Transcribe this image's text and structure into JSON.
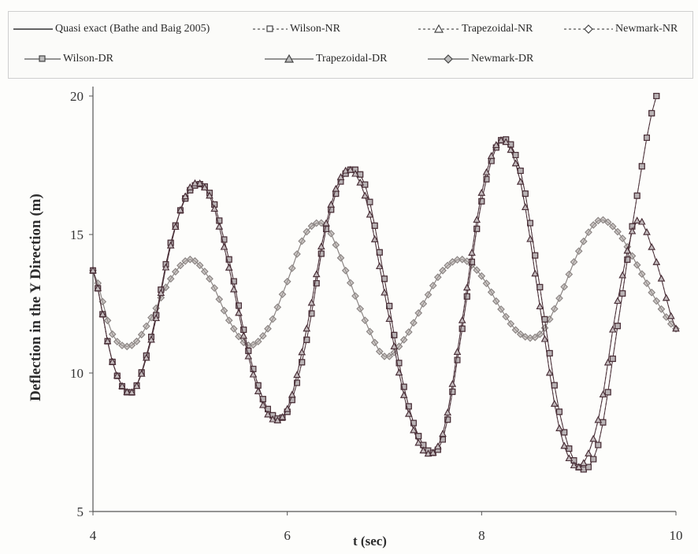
{
  "chart_data": {
    "type": "line",
    "xlabel": "t (sec)",
    "ylabel": "Deflection in the Y Direction (m)",
    "xlim": [
      4,
      10
    ],
    "ylim": [
      5,
      20
    ],
    "xticks": [
      "4",
      "6",
      "8",
      "10"
    ],
    "yticks": [
      "5",
      "10",
      "15",
      "20"
    ],
    "legend_placement": "top",
    "grid": false,
    "colors": {
      "dark": "#4a3038",
      "light": "#8c8684"
    },
    "series": [
      {
        "name": "Quasi exact (Bathe and Baig 2005)",
        "style": "solid",
        "marker": "none",
        "x": [
          4.0,
          4.2,
          4.4,
          4.6,
          4.8,
          5.0,
          5.2,
          5.4,
          5.6,
          5.8,
          6.0,
          6.2,
          6.4,
          6.6,
          6.8,
          7.0,
          7.2,
          7.4,
          7.6,
          7.8,
          8.0,
          8.2,
          8.4,
          8.6,
          8.8,
          9.0,
          9.2,
          9.4,
          9.6,
          9.8,
          10.0
        ],
        "y": [
          13.7,
          11.4,
          11.0,
          12.0,
          13.4,
          14.1,
          13.4,
          11.9,
          11.0,
          11.6,
          13.3,
          15.1,
          15.3,
          13.7,
          11.9,
          10.6,
          11.2,
          12.5,
          13.7,
          14.1,
          13.5,
          12.3,
          11.4,
          11.4,
          12.7,
          14.4,
          15.5,
          15.1,
          13.9,
          12.6,
          11.6
        ]
      },
      {
        "name": "Wilson-NR",
        "style": "dashed",
        "marker": "square",
        "x": [
          4.0,
          4.2,
          4.4,
          4.6,
          4.8,
          5.0,
          5.2,
          5.4,
          5.6,
          5.8,
          6.0,
          6.2,
          6.4,
          6.6,
          6.8,
          7.0,
          7.2,
          7.4,
          7.6,
          7.8,
          8.0,
          8.2,
          8.4,
          8.6,
          8.8,
          9.0,
          9.2,
          9.4,
          9.6,
          9.8
        ],
        "y": [
          13.7,
          10.4,
          9.3,
          11.3,
          14.7,
          16.6,
          16.5,
          14.1,
          10.8,
          8.7,
          8.6,
          11.2,
          15.2,
          17.2,
          16.8,
          13.4,
          9.5,
          7.4,
          7.6,
          11.6,
          16.2,
          18.4,
          17.3,
          13.1,
          8.6,
          6.6,
          7.4,
          11.7,
          16.4,
          20.0
        ]
      },
      {
        "name": "Trapezoidal-NR",
        "style": "dashed",
        "marker": "triangle",
        "x": [
          4.0,
          4.2,
          4.4,
          4.6,
          4.8,
          5.0,
          5.2,
          5.4,
          5.6,
          5.8,
          6.0,
          6.2,
          6.4,
          6.6,
          6.8,
          7.0,
          7.2,
          7.4,
          7.6,
          7.8,
          8.0,
          8.2,
          8.4,
          8.6,
          8.8,
          9.0,
          9.2,
          9.4,
          9.6,
          9.8,
          10.0
        ],
        "y": [
          13.7,
          10.4,
          9.3,
          11.2,
          14.6,
          16.7,
          16.4,
          13.8,
          10.6,
          8.5,
          8.7,
          11.6,
          15.4,
          17.3,
          16.4,
          12.9,
          9.2,
          7.2,
          7.8,
          11.9,
          16.5,
          18.4,
          16.9,
          12.4,
          8.0,
          6.6,
          8.3,
          12.6,
          15.5,
          14.0,
          11.6
        ]
      },
      {
        "name": "Newmark-NR",
        "style": "dashed",
        "marker": "diamond",
        "x": [
          4.0,
          4.2,
          4.4,
          4.6,
          4.8,
          5.0,
          5.2,
          5.4,
          5.6,
          5.8,
          6.0,
          6.2,
          6.4,
          6.6,
          6.8,
          7.0,
          7.2,
          7.4,
          7.6,
          7.8,
          8.0,
          8.2,
          8.4,
          8.6,
          8.8,
          9.0,
          9.2,
          9.4,
          9.6,
          9.8,
          10.0
        ],
        "y": [
          13.7,
          11.4,
          11.0,
          12.0,
          13.4,
          14.1,
          13.4,
          11.9,
          11.0,
          11.6,
          13.3,
          15.1,
          15.3,
          13.7,
          11.9,
          10.6,
          11.2,
          12.5,
          13.7,
          14.1,
          13.5,
          12.3,
          11.4,
          11.4,
          12.7,
          14.4,
          15.5,
          15.1,
          13.9,
          12.6,
          11.6
        ]
      },
      {
        "name": "Wilson-DR",
        "style": "solid",
        "marker": "square",
        "x": [
          4.0,
          4.2,
          4.4,
          4.6,
          4.8,
          5.0,
          5.2,
          5.4,
          5.6,
          5.8,
          6.0,
          6.2,
          6.4,
          6.6,
          6.8,
          7.0,
          7.2,
          7.4,
          7.6,
          7.8,
          8.0,
          8.2,
          8.4,
          8.6,
          8.8,
          9.0,
          9.2,
          9.4,
          9.6,
          9.8
        ],
        "y": [
          13.7,
          10.4,
          9.3,
          11.3,
          14.7,
          16.6,
          16.5,
          14.1,
          10.8,
          8.7,
          8.6,
          11.2,
          15.2,
          17.2,
          16.8,
          13.4,
          9.5,
          7.4,
          7.6,
          11.6,
          16.2,
          18.4,
          17.3,
          13.1,
          8.6,
          6.6,
          7.4,
          11.7,
          16.4,
          20.0
        ]
      },
      {
        "name": "Trapezoidal-DR",
        "style": "solid",
        "marker": "triangle",
        "x": [
          4.0,
          4.2,
          4.4,
          4.6,
          4.8,
          5.0,
          5.2,
          5.4,
          5.6,
          5.8,
          6.0,
          6.2,
          6.4,
          6.6,
          6.8,
          7.0,
          7.2,
          7.4,
          7.6,
          7.8,
          8.0,
          8.2,
          8.4,
          8.6,
          8.8,
          9.0,
          9.2,
          9.4,
          9.6,
          9.8,
          10.0
        ],
        "y": [
          13.7,
          10.4,
          9.3,
          11.2,
          14.6,
          16.7,
          16.4,
          13.8,
          10.6,
          8.5,
          8.7,
          11.6,
          15.4,
          17.3,
          16.4,
          12.9,
          9.2,
          7.2,
          7.8,
          11.9,
          16.5,
          18.4,
          16.9,
          12.4,
          8.0,
          6.6,
          8.3,
          12.6,
          15.5,
          14.0,
          11.6
        ]
      },
      {
        "name": "Newmark-DR",
        "style": "solid",
        "marker": "diamond",
        "x": [
          4.0,
          4.2,
          4.4,
          4.6,
          4.8,
          5.0,
          5.2,
          5.4,
          5.6,
          5.8,
          6.0,
          6.2,
          6.4,
          6.6,
          6.8,
          7.0,
          7.2,
          7.4,
          7.6,
          7.8,
          8.0,
          8.2,
          8.4,
          8.6,
          8.8,
          9.0,
          9.2,
          9.4,
          9.6,
          9.8,
          10.0
        ],
        "y": [
          13.7,
          11.4,
          11.0,
          12.0,
          13.4,
          14.1,
          13.4,
          11.9,
          11.0,
          11.6,
          13.3,
          15.1,
          15.3,
          13.7,
          11.9,
          10.6,
          11.2,
          12.5,
          13.7,
          14.1,
          13.5,
          12.3,
          11.4,
          11.4,
          12.7,
          14.4,
          15.5,
          15.1,
          13.9,
          12.6,
          11.6
        ]
      }
    ]
  }
}
